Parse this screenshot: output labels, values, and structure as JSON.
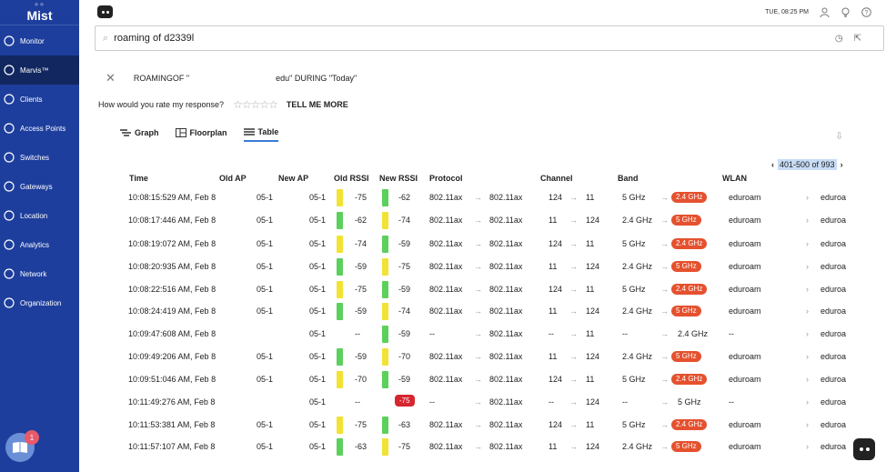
{
  "sidebar": {
    "logo": "Mist",
    "items": [
      {
        "label": "Monitor",
        "icon": "monitor-icon"
      },
      {
        "label": "Marvis™",
        "icon": "marvis-icon"
      },
      {
        "label": "Clients",
        "icon": "clients-icon"
      },
      {
        "label": "Access Points",
        "icon": "access-points-icon"
      },
      {
        "label": "Switches",
        "icon": "switches-icon"
      },
      {
        "label": "Gateways",
        "icon": "gateways-icon"
      },
      {
        "label": "Location",
        "icon": "location-icon"
      },
      {
        "label": "Analytics",
        "icon": "analytics-icon"
      },
      {
        "label": "Network",
        "icon": "network-icon"
      },
      {
        "label": "Organization",
        "icon": "organization-icon"
      }
    ],
    "help_badge": "1"
  },
  "topbar": {
    "time": "TUE, 08:25 PM"
  },
  "search": {
    "query": "roaming of d2339l"
  },
  "query": {
    "part1": "ROAMINGOF \"",
    "part2": "edu\" DURING \"Today\""
  },
  "rating": {
    "prompt": "How would you rate my response?",
    "stars": "☆☆☆☆☆",
    "tell_more": "TELL ME MORE"
  },
  "tabs": [
    {
      "label": "Graph"
    },
    {
      "label": "Floorplan"
    },
    {
      "label": "Table"
    }
  ],
  "pager": {
    "range": "401-500 of 993"
  },
  "table": {
    "headers": {
      "time": "Time",
      "old_ap": "Old AP",
      "new_ap": "New AP",
      "old_rssi": "Old RSSI",
      "new_rssi": "New RSSI",
      "protocol": "Protocol",
      "channel": "Channel",
      "band": "Band",
      "wlan": "WLAN"
    },
    "rows": [
      {
        "time": "10:08:15:529 AM, Feb 8",
        "old_ap": "05-1",
        "new_ap": "05-1",
        "old_rssi": "-75",
        "new_rssi": "-62",
        "proto_old": "802.11ax",
        "proto_new": "802.11ax",
        "ch_old": "124",
        "ch_new": "11",
        "band_old": "5 GHz",
        "band_new": "2.4 GHz",
        "wlan_old": "eduroam",
        "wlan_new": "eduroa"
      },
      {
        "time": "10:08:17:446 AM, Feb 8",
        "old_ap": "05-1",
        "new_ap": "05-1",
        "old_rssi": "-62",
        "new_rssi": "-74",
        "proto_old": "802.11ax",
        "proto_new": "802.11ax",
        "ch_old": "11",
        "ch_new": "124",
        "band_old": "2.4 GHz",
        "band_new": "5 GHz",
        "wlan_old": "eduroam",
        "wlan_new": "eduroa"
      },
      {
        "time": "10:08:19:072 AM, Feb 8",
        "old_ap": "05-1",
        "new_ap": "05-1",
        "old_rssi": "-74",
        "new_rssi": "-59",
        "proto_old": "802.11ax",
        "proto_new": "802.11ax",
        "ch_old": "124",
        "ch_new": "11",
        "band_old": "5 GHz",
        "band_new": "2.4 GHz",
        "wlan_old": "eduroam",
        "wlan_new": "eduroa"
      },
      {
        "time": "10:08:20:935 AM, Feb 8",
        "old_ap": "05-1",
        "new_ap": "05-1",
        "old_rssi": "-59",
        "new_rssi": "-75",
        "proto_old": "802.11ax",
        "proto_new": "802.11ax",
        "ch_old": "11",
        "ch_new": "124",
        "band_old": "2.4 GHz",
        "band_new": "5 GHz",
        "wlan_old": "eduroam",
        "wlan_new": "eduroa"
      },
      {
        "time": "10:08:22:516 AM, Feb 8",
        "old_ap": "05-1",
        "new_ap": "05-1",
        "old_rssi": "-75",
        "new_rssi": "-59",
        "proto_old": "802.11ax",
        "proto_new": "802.11ax",
        "ch_old": "124",
        "ch_new": "11",
        "band_old": "5 GHz",
        "band_new": "2.4 GHz",
        "wlan_old": "eduroam",
        "wlan_new": "eduroa"
      },
      {
        "time": "10:08:24:419 AM, Feb 8",
        "old_ap": "05-1",
        "new_ap": "05-1",
        "old_rssi": "-59",
        "new_rssi": "-74",
        "proto_old": "802.11ax",
        "proto_new": "802.11ax",
        "ch_old": "11",
        "ch_new": "124",
        "band_old": "2.4 GHz",
        "band_new": "5 GHz",
        "wlan_old": "eduroam",
        "wlan_new": "eduroa"
      },
      {
        "time": "10:09:47:608 AM, Feb 8",
        "old_ap": "",
        "new_ap": "05-1",
        "old_rssi": "--",
        "new_rssi": "-59",
        "proto_old": "--",
        "proto_new": "802.11ax",
        "ch_old": "--",
        "ch_new": "11",
        "band_old": "--",
        "band_new": "2.4 GHz",
        "wlan_old": "--",
        "wlan_new": "eduroa"
      },
      {
        "time": "10:09:49:206 AM, Feb 8",
        "old_ap": "05-1",
        "new_ap": "05-1",
        "old_rssi": "-59",
        "new_rssi": "-70",
        "proto_old": "802.11ax",
        "proto_new": "802.11ax",
        "ch_old": "11",
        "ch_new": "124",
        "band_old": "2.4 GHz",
        "band_new": "5 GHz",
        "wlan_old": "eduroam",
        "wlan_new": "eduroa"
      },
      {
        "time": "10:09:51:046 AM, Feb 8",
        "old_ap": "05-1",
        "new_ap": "05-1",
        "old_rssi": "-70",
        "new_rssi": "-59",
        "proto_old": "802.11ax",
        "proto_new": "802.11ax",
        "ch_old": "124",
        "ch_new": "11",
        "band_old": "5 GHz",
        "band_new": "2.4 GHz",
        "wlan_old": "eduroam",
        "wlan_new": "eduroa"
      },
      {
        "time": "10:11:49:276 AM, Feb 8",
        "old_ap": "",
        "new_ap": "05-1",
        "old_rssi": "--",
        "new_rssi": "-75",
        "proto_old": "--",
        "proto_new": "802.11ax",
        "ch_old": "--",
        "ch_new": "124",
        "band_old": "--",
        "band_new": "5 GHz",
        "wlan_old": "--",
        "wlan_new": "eduroa"
      },
      {
        "time": "10:11:53:381 AM, Feb 8",
        "old_ap": "05-1",
        "new_ap": "05-1",
        "old_rssi": "-75",
        "new_rssi": "-63",
        "proto_old": "802.11ax",
        "proto_new": "802.11ax",
        "ch_old": "124",
        "ch_new": "11",
        "band_old": "5 GHz",
        "band_new": "2.4 GHz",
        "wlan_old": "eduroam",
        "wlan_new": "eduroa"
      },
      {
        "time": "10:11:57:107 AM, Feb 8",
        "old_ap": "05-1",
        "new_ap": "05-1",
        "old_rssi": "-63",
        "new_rssi": "-75",
        "proto_old": "802.11ax",
        "proto_new": "802.11ax",
        "ch_old": "11",
        "ch_new": "124",
        "band_old": "2.4 GHz",
        "band_new": "5 GHz",
        "wlan_old": "eduroam",
        "wlan_new": "eduroa"
      }
    ]
  },
  "colors": {
    "sidebar": "#1d3e9c",
    "badge": "#e5512e",
    "green": "#5cd05c",
    "yellow": "#f2e233",
    "red": "#d62630"
  }
}
